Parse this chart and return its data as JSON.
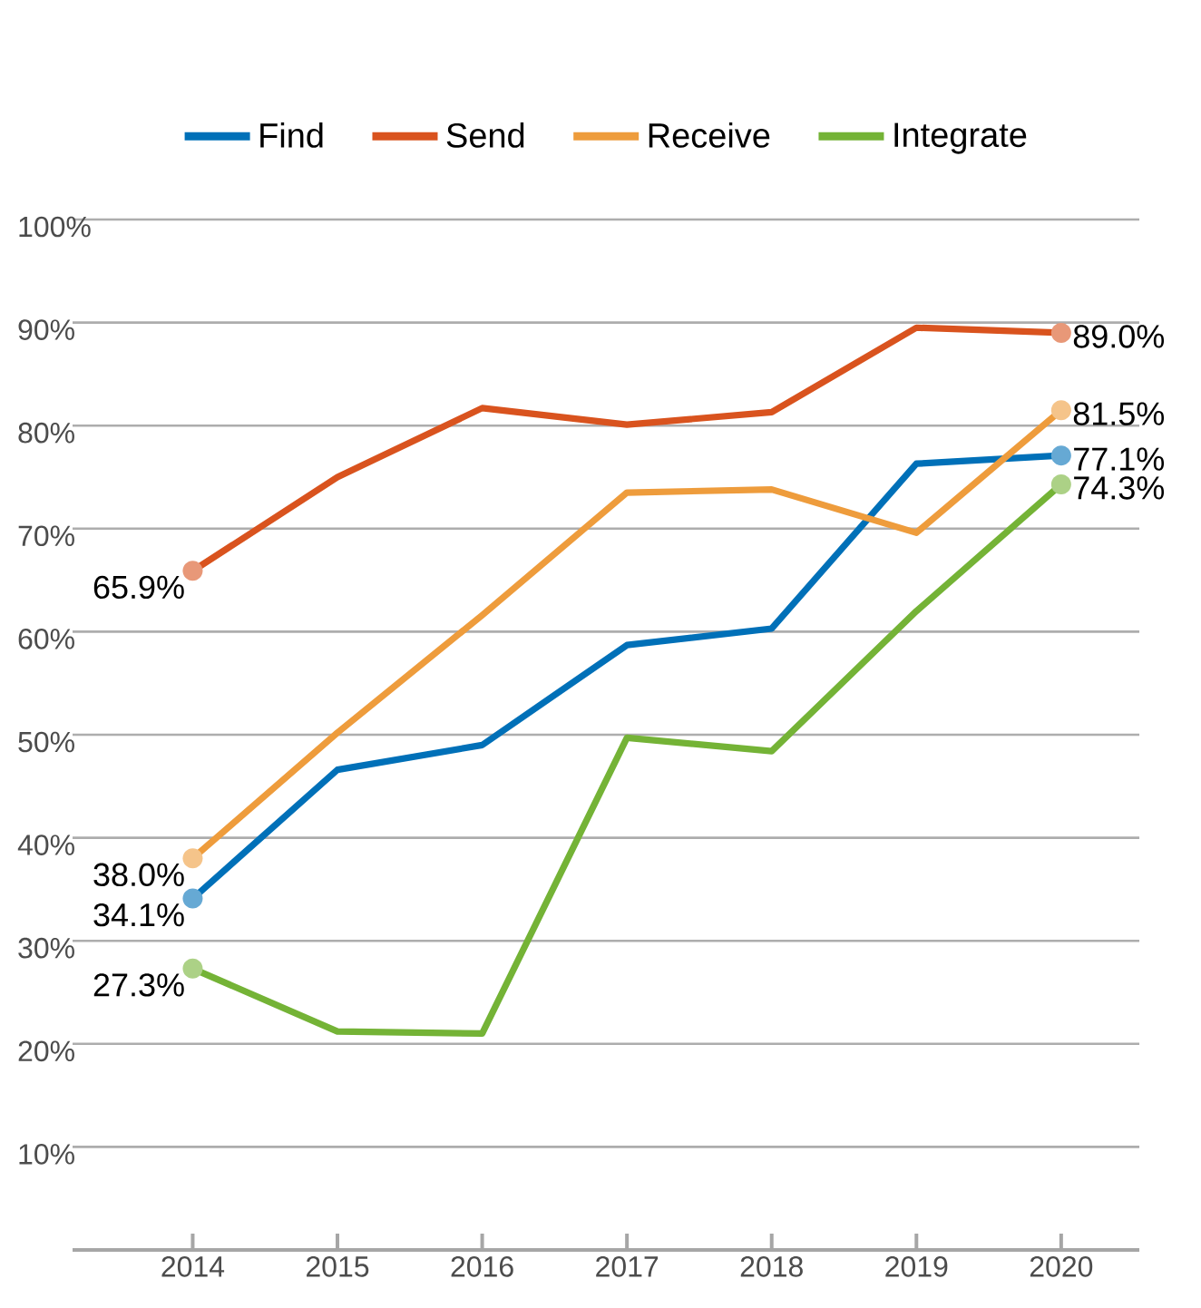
{
  "chart_data": {
    "type": "line",
    "categories": [
      "2014",
      "2015",
      "2016",
      "2017",
      "2018",
      "2019",
      "2020"
    ],
    "series": [
      {
        "name": "Find",
        "color": "#0070b8",
        "values": [
          34.1,
          46.6,
          49.0,
          58.7,
          60.3,
          76.3,
          77.1
        ],
        "value_labels": [
          "34.1%",
          null,
          null,
          null,
          null,
          null,
          "77.1%"
        ]
      },
      {
        "name": "Send",
        "color": "#d9531e",
        "values": [
          65.9,
          75.0,
          81.7,
          80.1,
          81.3,
          89.5,
          89.0
        ],
        "value_labels": [
          "65.9%",
          null,
          null,
          null,
          null,
          null,
          "89.0%"
        ]
      },
      {
        "name": "Receive",
        "color": "#ee9c3c",
        "values": [
          38.0,
          50.2,
          61.6,
          73.5,
          73.8,
          69.6,
          81.5
        ],
        "value_labels": [
          "38.0%",
          null,
          null,
          null,
          null,
          null,
          "81.5%"
        ]
      },
      {
        "name": "Integrate",
        "color": "#74b336",
        "values": [
          27.3,
          21.2,
          21.0,
          49.7,
          48.4,
          62.0,
          74.3
        ],
        "value_labels": [
          "27.3%",
          null,
          null,
          null,
          null,
          null,
          "74.3%"
        ]
      }
    ],
    "ylim": [
      0,
      100
    ],
    "yticks": [
      {
        "value": 10,
        "label": "10%"
      },
      {
        "value": 20,
        "label": "20%"
      },
      {
        "value": 30,
        "label": "30%"
      },
      {
        "value": 40,
        "label": "40%"
      },
      {
        "value": 50,
        "label": "50%"
      },
      {
        "value": 60,
        "label": "60%"
      },
      {
        "value": 70,
        "label": "70%"
      },
      {
        "value": 80,
        "label": "80%"
      },
      {
        "value": 90,
        "label": "90%"
      },
      {
        "value": 100,
        "label": "100%"
      }
    ],
    "grid": "y",
    "legend": "top"
  }
}
